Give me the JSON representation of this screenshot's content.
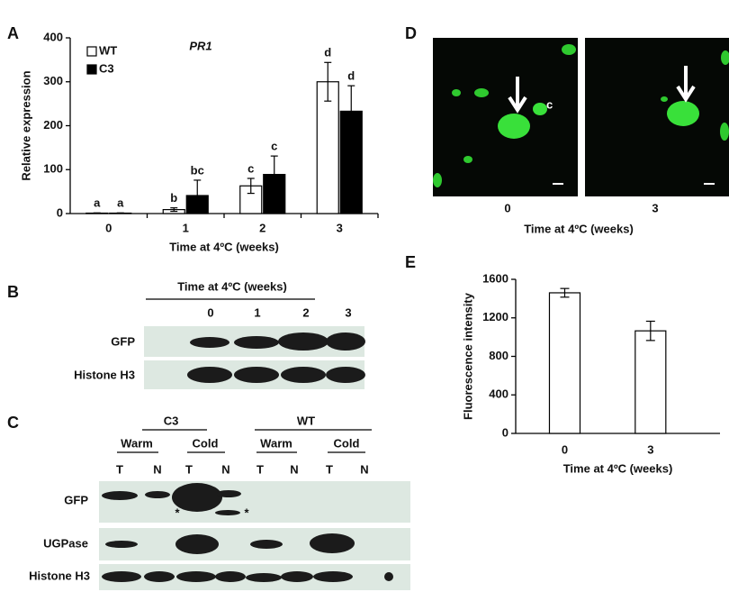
{
  "chart_data": [
    {
      "type": "bar",
      "title": "PR1",
      "ylabel": "Relative expression",
      "xlabel": "Time at 4ºC (weeks)",
      "categories": [
        "0",
        "1",
        "2",
        "3"
      ],
      "series": [
        {
          "name": "WT",
          "color": "#ffffff",
          "values": [
            1,
            9,
            63,
            300
          ],
          "errors": [
            0.5,
            4,
            17,
            44
          ],
          "letters": [
            "a",
            "b",
            "c",
            "d"
          ]
        },
        {
          "name": "C3",
          "color": "#000000",
          "values": [
            1,
            41,
            89,
            233
          ],
          "errors": [
            0.5,
            35,
            42,
            58
          ],
          "letters": [
            "a",
            "bc",
            "c",
            "d"
          ]
        }
      ],
      "ylim": [
        0,
        400
      ],
      "yticks": [
        0,
        100,
        200,
        300,
        400
      ],
      "legend": "top-left"
    },
    {
      "type": "bar",
      "ylabel": "Fluorescence intensity",
      "xlabel": "Time at 4ºC (weeks)",
      "categories": [
        "0",
        "3"
      ],
      "values": [
        1460,
        1065
      ],
      "errors": [
        45,
        100
      ],
      "color": "#ffffff",
      "ylim": [
        0,
        1600
      ],
      "yticks": [
        0,
        400,
        800,
        1200,
        1600
      ]
    }
  ],
  "panel_labels": [
    "A",
    "B",
    "C",
    "D",
    "E"
  ],
  "panel_b": {
    "title": "Time at 4ºC (weeks)",
    "lanes": [
      "0",
      "1",
      "2",
      "3"
    ],
    "rows": [
      "GFP",
      "Histone H3"
    ]
  },
  "panel_c": {
    "groups": [
      "C3",
      "WT"
    ],
    "conditions": [
      "Warm",
      "Cold",
      "Warm",
      "Cold"
    ],
    "fractions": [
      "T",
      "N",
      "T",
      "N",
      "T",
      "N",
      "T",
      "N"
    ],
    "rows": [
      "GFP",
      "UGPase",
      "Histone H3"
    ],
    "markers": [
      "*",
      "*"
    ]
  },
  "panel_d": {
    "images": [
      "0",
      "3"
    ],
    "xlabel": "Time at 4ºC (weeks)",
    "annotation": "c"
  }
}
